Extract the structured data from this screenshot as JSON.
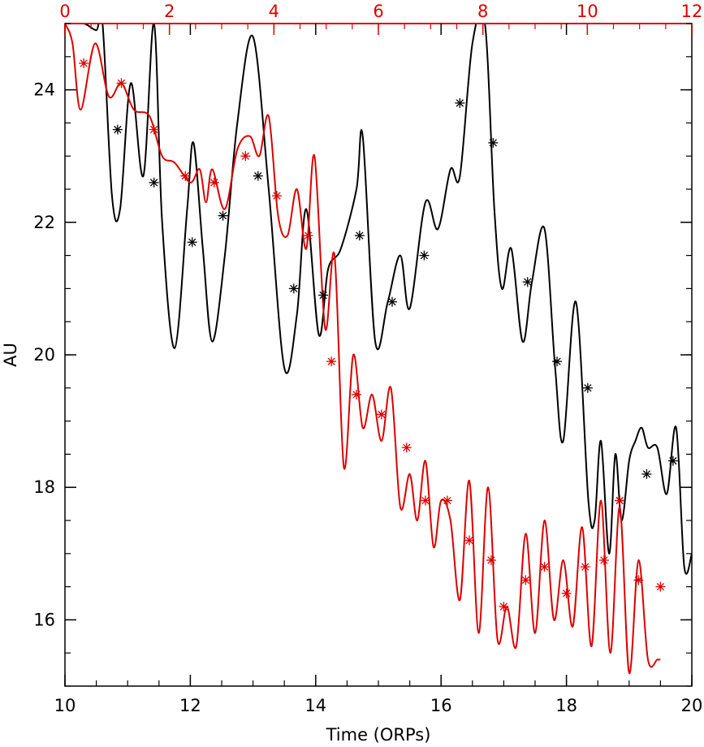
{
  "chart_data": {
    "type": "line",
    "title": "",
    "xlabel": "Time (ORPs)",
    "ylabel": "AU",
    "xlim": [
      10,
      20
    ],
    "ylim": [
      15,
      25
    ],
    "top_xlim": [
      0,
      12
    ],
    "x_ticks": [
      "10",
      "12",
      "14",
      "16",
      "18",
      "20"
    ],
    "top_x_ticks": [
      "0",
      "2",
      "4",
      "6",
      "8",
      "10",
      "12"
    ],
    "y_ticks": [
      "16",
      "18",
      "20",
      "22",
      "24"
    ],
    "grid": false,
    "legend": "none",
    "colors": {
      "black_series": "#000000",
      "red_series": "#dd0000",
      "top_axis": "#dd0000"
    },
    "series": [
      {
        "color": "#000000",
        "axis": "bottom",
        "x": [
          10.0,
          10.3,
          10.5,
          10.6,
          10.75,
          10.88,
          11.05,
          11.25,
          11.42,
          11.55,
          11.75,
          11.95,
          12.05,
          12.2,
          12.35,
          12.55,
          12.75,
          13.0,
          13.25,
          13.5,
          13.7,
          13.85,
          14.05,
          14.2,
          14.4,
          14.65,
          14.75,
          14.95,
          15.15,
          15.35,
          15.5,
          15.75,
          15.95,
          16.15,
          16.3,
          16.5,
          16.7,
          16.85,
          16.97,
          17.12,
          17.3,
          17.45,
          17.65,
          17.82,
          17.95,
          18.15,
          18.35,
          18.45,
          18.55,
          18.68,
          18.78,
          18.88,
          19.0,
          19.1,
          19.2,
          19.3,
          19.45,
          19.6,
          19.75,
          19.88,
          20.0
        ],
        "y": [
          25.0,
          25.0,
          24.9,
          25.0,
          22.4,
          22.2,
          24.1,
          22.7,
          25.0,
          22.0,
          20.1,
          22.2,
          23.2,
          21.6,
          20.2,
          21.5,
          23.5,
          24.8,
          22.5,
          19.8,
          20.6,
          22.2,
          20.3,
          21.3,
          21.6,
          22.5,
          23.3,
          20.2,
          20.8,
          21.5,
          20.7,
          22.3,
          21.9,
          22.8,
          22.7,
          24.7,
          25.0,
          22.2,
          21.0,
          21.6,
          20.2,
          21.1,
          21.9,
          19.8,
          18.7,
          20.8,
          17.8,
          17.5,
          18.7,
          17.0,
          18.5,
          17.5,
          18.4,
          18.7,
          18.9,
          18.6,
          18.6,
          17.9,
          18.9,
          16.8,
          17.0
        ]
      },
      {
        "color": "#dd0000",
        "axis": "bottom",
        "x": [
          10.0,
          10.12,
          10.25,
          10.48,
          10.7,
          10.9,
          11.1,
          11.35,
          11.55,
          11.75,
          12.0,
          12.15,
          12.25,
          12.35,
          12.55,
          12.75,
          12.95,
          13.1,
          13.25,
          13.4,
          13.55,
          13.7,
          13.85,
          13.98,
          14.15,
          14.3,
          14.45,
          14.6,
          14.75,
          14.9,
          15.05,
          15.2,
          15.35,
          15.5,
          15.62,
          15.75,
          15.88,
          16.0,
          16.15,
          16.3,
          16.45,
          16.6,
          16.75,
          16.9,
          17.05,
          17.2,
          17.35,
          17.5,
          17.65,
          17.8,
          17.95,
          18.1,
          18.25,
          18.4,
          18.55,
          18.7,
          18.85,
          19.0,
          19.15,
          19.3,
          19.45,
          19.5
        ],
        "y": [
          25.0,
          24.7,
          23.7,
          24.7,
          23.9,
          24.1,
          23.7,
          23.6,
          23.0,
          22.9,
          22.6,
          22.8,
          22.3,
          22.8,
          22.2,
          23.1,
          23.3,
          23.0,
          23.6,
          22.1,
          21.8,
          22.5,
          21.6,
          23.0,
          20.4,
          21.5,
          18.3,
          20.0,
          18.9,
          19.4,
          18.7,
          19.5,
          17.7,
          18.2,
          17.5,
          18.4,
          17.1,
          17.8,
          17.5,
          16.3,
          18.1,
          15.8,
          18.0,
          15.7,
          16.2,
          15.6,
          17.3,
          15.8,
          17.5,
          16.0,
          16.9,
          15.9,
          17.4,
          15.6,
          17.8,
          15.5,
          17.7,
          15.2,
          16.9,
          15.4,
          15.4,
          15.4
        ]
      },
      {
        "color": "#000000",
        "axis": "bottom",
        "marker": "asterisk",
        "x": [
          10.84,
          11.42,
          12.03,
          12.52,
          13.08,
          13.65,
          14.12,
          14.7,
          15.22,
          15.73,
          16.3,
          16.83,
          17.38,
          17.85,
          18.34,
          18.85,
          19.28,
          19.7
        ],
        "y": [
          23.4,
          22.6,
          21.7,
          22.1,
          22.7,
          21.0,
          20.9,
          21.8,
          20.8,
          21.5,
          23.8,
          23.2,
          21.1,
          19.9,
          19.5,
          17.8,
          18.2,
          18.4
        ]
      },
      {
        "color": "#dd0000",
        "axis": "bottom",
        "marker": "asterisk",
        "x": [
          10.3,
          10.9,
          11.42,
          11.92,
          12.38,
          12.88,
          13.38,
          13.88,
          14.25,
          14.65,
          15.05,
          15.45,
          15.75,
          16.1,
          16.45,
          16.8,
          17.0,
          17.35,
          17.65,
          18.0,
          18.3,
          18.6,
          18.85,
          19.15,
          19.5
        ],
        "y": [
          24.4,
          24.1,
          23.4,
          22.7,
          22.6,
          23.0,
          22.4,
          21.8,
          19.9,
          19.4,
          19.1,
          18.6,
          17.8,
          17.8,
          17.2,
          16.9,
          16.2,
          16.6,
          16.8,
          16.4,
          16.8,
          16.9,
          17.8,
          16.6,
          16.5
        ]
      }
    ]
  }
}
